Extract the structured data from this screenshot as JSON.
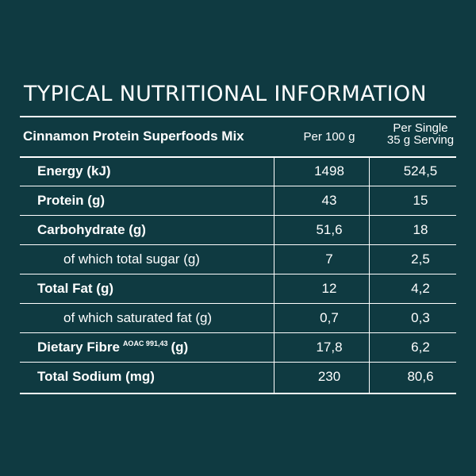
{
  "title": "TYPICAL NUTRITIONAL INFORMATION",
  "header": {
    "product": "Cinnamon Protein Superfoods Mix",
    "per_100g": "Per 100 g",
    "per_serving_line1": "Per Single",
    "per_serving_line2": "35 g Serving"
  },
  "rows": [
    {
      "label": "Energy (kJ)",
      "per_100g": "1498",
      "per_serving": "524,5"
    },
    {
      "label": "Protein (g)",
      "per_100g": "43",
      "per_serving": "15"
    },
    {
      "label": "Carbohydrate (g)",
      "per_100g": "51,6",
      "per_serving": "18"
    },
    {
      "label": "of which total sugar (g)",
      "per_100g": "7",
      "per_serving": "2,5"
    },
    {
      "label": "Total Fat (g)",
      "per_100g": "12",
      "per_serving": "4,2"
    },
    {
      "label": "of which saturated fat (g)",
      "per_100g": "0,7",
      "per_serving": "0,3"
    },
    {
      "label": "Dietary Fibre",
      "label_sup": "AOAC 991,43",
      "label_suffix": "(g)",
      "per_100g": "17,8",
      "per_serving": "6,2"
    },
    {
      "label": "Total Sodium (mg)",
      "per_100g": "230",
      "per_serving": "80,6"
    }
  ],
  "colors": {
    "background": "#0f3a41",
    "text": "#ffffff"
  }
}
